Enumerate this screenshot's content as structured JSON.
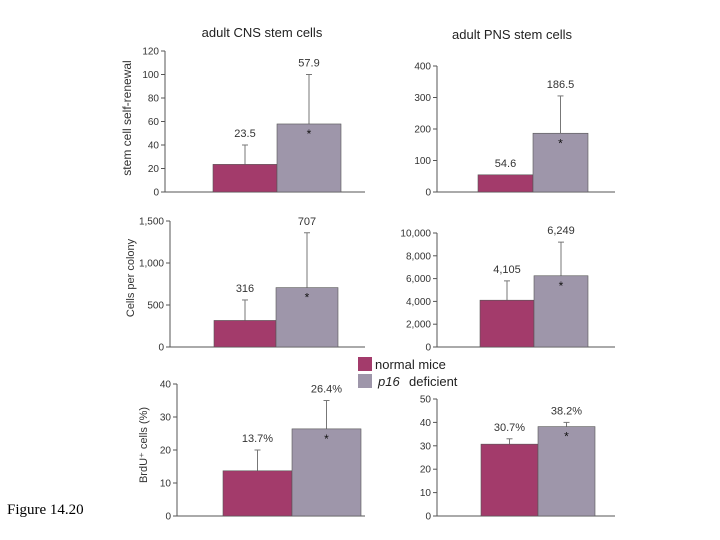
{
  "figure_label": "Figure 14.20",
  "column_titles": [
    "adult CNS stem cells",
    "adult PNS stem cells"
  ],
  "row_ylabels": [
    "stem cell self-renewal",
    "Cells per colony",
    "BrdU⁺ cells (%)"
  ],
  "legend": [
    {
      "prefix": "",
      "label": "normal mice",
      "color": "#a33b6b"
    },
    {
      "prefix": "p16",
      "label": "deficient",
      "color": "#9e96aa"
    }
  ],
  "significance_marker": "*",
  "colors": {
    "normal": "#a33b6b",
    "deficient": "#9e96aa",
    "axis": "#555555"
  },
  "chart_data": [
    {
      "type": "bar",
      "title": "adult CNS stem cells",
      "ylabel": "stem cell self-renewal",
      "ylim": [
        0,
        120
      ],
      "yticks": [
        "0",
        "20",
        "40",
        "60",
        "80",
        "100",
        "120"
      ],
      "series": [
        {
          "name": "normal mice",
          "value": 23.5,
          "label": "23.5",
          "error_top": 40,
          "significant": false
        },
        {
          "name": "p16 deficient",
          "value": 57.9,
          "label": "57.9",
          "error_top": 100,
          "significant": true
        }
      ]
    },
    {
      "type": "bar",
      "title": "adult PNS stem cells",
      "ylabel": "",
      "ylim": [
        0,
        400
      ],
      "yticks": [
        "0",
        "100",
        "200",
        "300",
        "400"
      ],
      "series": [
        {
          "name": "normal mice",
          "value": 54.6,
          "label": "54.6",
          "error_top": 54.6,
          "significant": false
        },
        {
          "name": "p16 deficient",
          "value": 186.5,
          "label": "186.5",
          "error_top": 305,
          "significant": true
        }
      ]
    },
    {
      "type": "bar",
      "title": "",
      "ylabel": "Cells per colony",
      "ylim": [
        0,
        1500
      ],
      "yticks": [
        "0",
        "500",
        "1,000",
        "1,500"
      ],
      "series": [
        {
          "name": "normal mice",
          "value": 316,
          "label": "316",
          "error_top": 560,
          "significant": false
        },
        {
          "name": "p16 deficient",
          "value": 707,
          "label": "707",
          "error_top": 1360,
          "significant": true
        }
      ]
    },
    {
      "type": "bar",
      "title": "",
      "ylabel": "",
      "ylim": [
        0,
        10000
      ],
      "yticks": [
        "0",
        "2,000",
        "4,000",
        "6,000",
        "8,000",
        "10,000"
      ],
      "series": [
        {
          "name": "normal mice",
          "value": 4105,
          "label": "4,105",
          "error_top": 5800,
          "significant": false
        },
        {
          "name": "p16 deficient",
          "value": 6249,
          "label": "6,249",
          "error_top": 9200,
          "significant": true
        }
      ]
    },
    {
      "type": "bar",
      "title": "",
      "ylabel": "BrdU⁺ cells (%)",
      "ylim": [
        0,
        40
      ],
      "yticks": [
        "0",
        "10",
        "20",
        "30",
        "40"
      ],
      "series": [
        {
          "name": "normal mice",
          "value": 13.7,
          "label": "13.7%",
          "error_top": 20,
          "significant": false
        },
        {
          "name": "p16 deficient",
          "value": 26.4,
          "label": "26.4%",
          "error_top": 35,
          "significant": true
        }
      ]
    },
    {
      "type": "bar",
      "title": "",
      "ylabel": "",
      "ylim": [
        0,
        50
      ],
      "yticks": [
        "0",
        "10",
        "20",
        "30",
        "40",
        "50"
      ],
      "series": [
        {
          "name": "normal mice",
          "value": 30.7,
          "label": "30.7%",
          "error_top": 33,
          "significant": false
        },
        {
          "name": "p16 deficient",
          "value": 38.2,
          "label": "38.2%",
          "error_top": 40,
          "significant": true
        }
      ]
    }
  ]
}
